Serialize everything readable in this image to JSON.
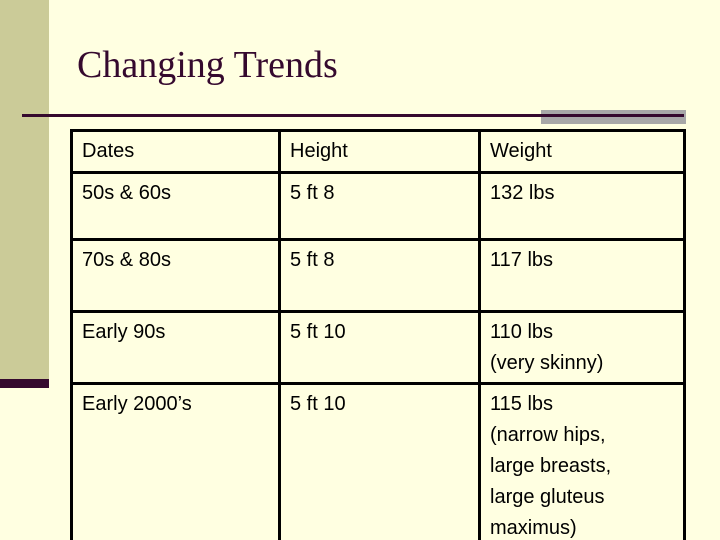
{
  "slide": {
    "title": "Changing Trends",
    "table": {
      "headers": [
        "Dates",
        "Height",
        "Weight"
      ],
      "rows": [
        {
          "dates": "50s & 60s",
          "height": "5 ft 8",
          "weight": [
            "132 lbs"
          ]
        },
        {
          "dates": "70s & 80s",
          "height": "5 ft 8",
          "weight": [
            "117 lbs"
          ]
        },
        {
          "dates": "Early 90s",
          "height": "5 ft 10",
          "weight": [
            "110 lbs",
            "(very skinny)"
          ]
        },
        {
          "dates": "Early 2000’s",
          "height": "5 ft 10",
          "weight": [
            "115 lbs",
            "(narrow hips,",
            "large breasts,",
            "large gluteus",
            "maximus)"
          ]
        }
      ]
    },
    "colors": {
      "background": "#FFFFE1",
      "accent_olive": "#CBCB98",
      "accent_maroon": "#35092E",
      "underline_gray": "#A8A8A8",
      "table_border": "#000000",
      "table_text": "#000000"
    }
  }
}
